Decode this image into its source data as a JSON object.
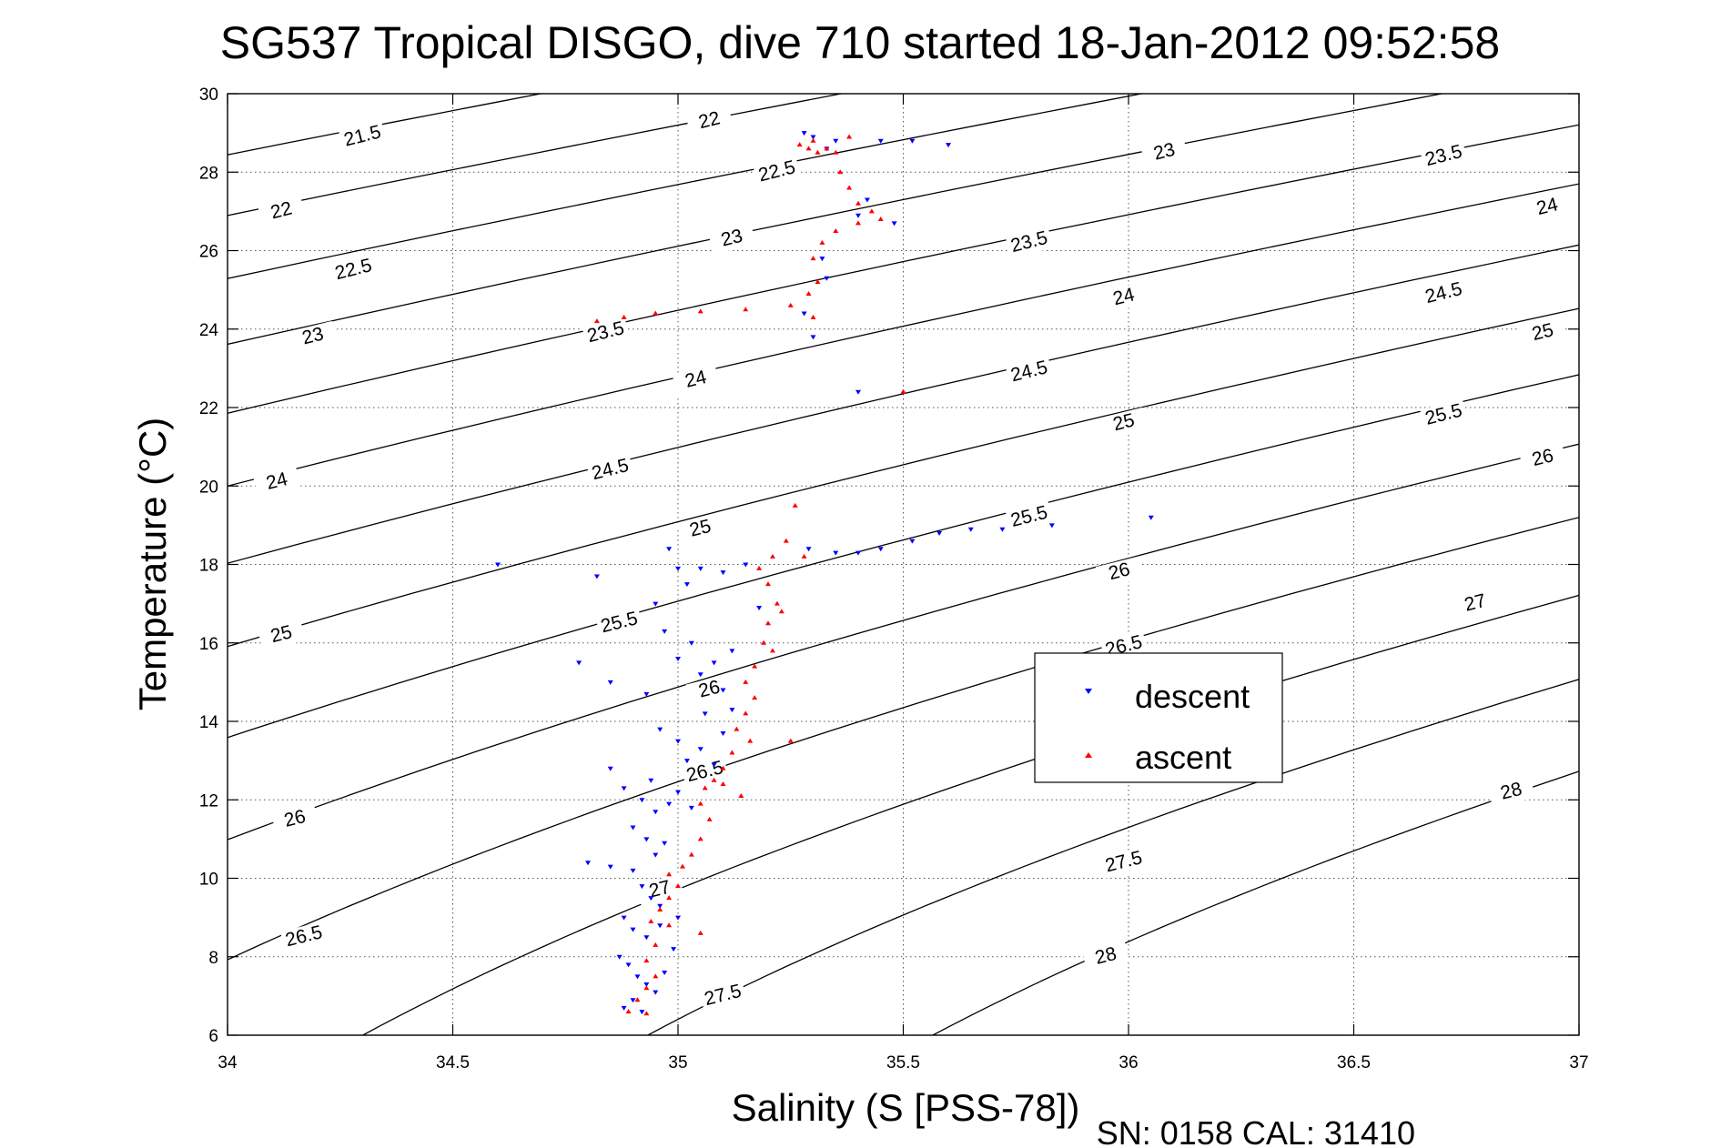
{
  "chart_data": {
    "type": "scatter",
    "title": "SG537 Tropical DISGO, dive 710 started 18-Jan-2012 09:52:58",
    "xlabel": "Salinity (S [PSS-78])",
    "ylabel": "Temperature (°C)",
    "footer": "SN: 0158  CAL: 31410",
    "xlim": [
      34,
      37
    ],
    "ylim": [
      6,
      30
    ],
    "x_ticks": [
      34,
      34.5,
      35,
      35.5,
      36,
      36.5,
      37
    ],
    "x_tick_labels": [
      "34",
      "34.5",
      "35",
      "35.5",
      "36",
      "36.5",
      "37"
    ],
    "y_ticks": [
      6,
      8,
      10,
      12,
      14,
      16,
      18,
      20,
      22,
      24,
      26,
      28,
      30
    ],
    "y_tick_labels": [
      "6",
      "8",
      "10",
      "12",
      "14",
      "16",
      "18",
      "20",
      "22",
      "24",
      "26",
      "28",
      "30"
    ],
    "grid": true,
    "legend_position": "center-right",
    "series": [
      {
        "name": "descent",
        "color": "#0000ff",
        "marker": "triangle-down",
        "points": [
          [
            35.28,
            29.0
          ],
          [
            35.3,
            28.9
          ],
          [
            35.33,
            28.6
          ],
          [
            35.45,
            28.8
          ],
          [
            35.52,
            28.8
          ],
          [
            35.6,
            28.7
          ],
          [
            35.35,
            28.8
          ],
          [
            35.42,
            27.3
          ],
          [
            35.4,
            26.9
          ],
          [
            35.48,
            26.7
          ],
          [
            35.32,
            25.8
          ],
          [
            35.33,
            25.3
          ],
          [
            35.28,
            24.4
          ],
          [
            35.3,
            23.8
          ],
          [
            35.4,
            22.4
          ],
          [
            35.29,
            18.4
          ],
          [
            35.35,
            18.3
          ],
          [
            35.4,
            18.3
          ],
          [
            35.45,
            18.4
          ],
          [
            35.52,
            18.6
          ],
          [
            35.58,
            18.8
          ],
          [
            35.65,
            18.9
          ],
          [
            35.72,
            18.9
          ],
          [
            35.83,
            19.0
          ],
          [
            36.05,
            19.2
          ],
          [
            34.6,
            18.0
          ],
          [
            34.82,
            17.7
          ],
          [
            34.78,
            15.5
          ],
          [
            34.85,
            15.0
          ],
          [
            34.98,
            18.4
          ],
          [
            35.0,
            17.9
          ],
          [
            35.02,
            17.5
          ],
          [
            35.05,
            17.9
          ],
          [
            35.1,
            17.8
          ],
          [
            35.15,
            18.0
          ],
          [
            34.95,
            17.0
          ],
          [
            34.97,
            16.3
          ],
          [
            35.0,
            15.6
          ],
          [
            35.03,
            16.0
          ],
          [
            35.05,
            15.2
          ],
          [
            35.08,
            15.5
          ],
          [
            35.1,
            14.8
          ],
          [
            35.12,
            14.3
          ],
          [
            34.93,
            14.7
          ],
          [
            34.96,
            13.8
          ],
          [
            35.0,
            13.5
          ],
          [
            35.02,
            13.0
          ],
          [
            35.05,
            13.3
          ],
          [
            35.08,
            12.9
          ],
          [
            35.1,
            13.7
          ],
          [
            34.85,
            12.8
          ],
          [
            34.88,
            12.3
          ],
          [
            34.92,
            12.0
          ],
          [
            34.95,
            11.7
          ],
          [
            34.98,
            11.9
          ],
          [
            35.0,
            12.2
          ],
          [
            35.03,
            11.8
          ],
          [
            34.9,
            11.3
          ],
          [
            34.93,
            11.0
          ],
          [
            34.95,
            10.6
          ],
          [
            34.97,
            10.9
          ],
          [
            34.8,
            10.4
          ],
          [
            34.85,
            10.3
          ],
          [
            34.9,
            10.2
          ],
          [
            34.92,
            9.8
          ],
          [
            34.94,
            9.5
          ],
          [
            34.96,
            9.3
          ],
          [
            34.88,
            9.0
          ],
          [
            34.9,
            8.7
          ],
          [
            34.93,
            8.5
          ],
          [
            34.87,
            8.0
          ],
          [
            34.89,
            7.8
          ],
          [
            34.91,
            7.5
          ],
          [
            34.93,
            7.3
          ],
          [
            34.95,
            7.1
          ],
          [
            34.9,
            6.9
          ],
          [
            34.88,
            6.7
          ],
          [
            34.92,
            6.6
          ],
          [
            34.97,
            7.6
          ],
          [
            34.99,
            8.2
          ],
          [
            35.0,
            9.0
          ],
          [
            34.96,
            8.8
          ],
          [
            34.94,
            12.5
          ],
          [
            35.06,
            14.2
          ],
          [
            35.12,
            15.8
          ],
          [
            35.18,
            16.9
          ]
        ]
      },
      {
        "name": "ascent",
        "color": "#ff0000",
        "marker": "triangle-up",
        "points": [
          [
            35.27,
            28.7
          ],
          [
            35.29,
            28.6
          ],
          [
            35.31,
            28.5
          ],
          [
            35.33,
            28.6
          ],
          [
            35.3,
            28.8
          ],
          [
            35.35,
            28.5
          ],
          [
            35.38,
            28.9
          ],
          [
            35.36,
            28.0
          ],
          [
            35.38,
            27.6
          ],
          [
            35.4,
            27.2
          ],
          [
            35.43,
            27.0
          ],
          [
            35.45,
            26.8
          ],
          [
            35.4,
            26.7
          ],
          [
            35.35,
            26.5
          ],
          [
            35.32,
            26.2
          ],
          [
            35.3,
            25.8
          ],
          [
            35.31,
            25.2
          ],
          [
            35.29,
            24.9
          ],
          [
            35.25,
            24.6
          ],
          [
            35.15,
            24.5
          ],
          [
            35.05,
            24.45
          ],
          [
            34.95,
            24.4
          ],
          [
            34.88,
            24.3
          ],
          [
            34.82,
            24.2
          ],
          [
            35.3,
            24.3
          ],
          [
            35.5,
            22.4
          ],
          [
            35.26,
            19.5
          ],
          [
            35.24,
            18.6
          ],
          [
            35.21,
            18.2
          ],
          [
            35.18,
            17.9
          ],
          [
            35.2,
            17.5
          ],
          [
            35.22,
            17.0
          ],
          [
            35.2,
            16.5
          ],
          [
            35.19,
            16.0
          ],
          [
            35.21,
            15.8
          ],
          [
            35.17,
            15.4
          ],
          [
            35.15,
            15.0
          ],
          [
            35.17,
            14.6
          ],
          [
            35.15,
            14.2
          ],
          [
            35.13,
            13.8
          ],
          [
            35.16,
            13.5
          ],
          [
            35.12,
            13.2
          ],
          [
            35.1,
            12.8
          ],
          [
            35.08,
            12.5
          ],
          [
            35.06,
            12.3
          ],
          [
            35.05,
            11.9
          ],
          [
            35.07,
            11.5
          ],
          [
            35.05,
            11.0
          ],
          [
            35.03,
            10.6
          ],
          [
            35.01,
            10.3
          ],
          [
            34.98,
            10.1
          ],
          [
            35.0,
            9.8
          ],
          [
            34.98,
            9.5
          ],
          [
            34.96,
            9.2
          ],
          [
            34.94,
            8.9
          ],
          [
            34.98,
            8.8
          ],
          [
            35.05,
            8.6
          ],
          [
            34.95,
            8.3
          ],
          [
            34.93,
            7.9
          ],
          [
            34.95,
            7.5
          ],
          [
            34.93,
            7.2
          ],
          [
            34.91,
            6.9
          ],
          [
            34.89,
            6.6
          ],
          [
            34.93,
            6.55
          ],
          [
            35.1,
            12.4
          ],
          [
            35.14,
            12.1
          ],
          [
            35.25,
            13.5
          ],
          [
            35.23,
            16.8
          ],
          [
            35.28,
            18.2
          ]
        ]
      }
    ],
    "contours": [
      {
        "value": "21.5",
        "labels": [
          [
            34.3,
            28.9
          ]
        ]
      },
      {
        "value": "22",
        "labels": [
          [
            34.12,
            27.0
          ],
          [
            35.07,
            29.3
          ]
        ]
      },
      {
        "value": "22.5",
        "labels": [
          [
            34.28,
            25.5
          ],
          [
            35.22,
            28.0
          ]
        ]
      },
      {
        "value": "23",
        "labels": [
          [
            34.19,
            23.8
          ],
          [
            35.12,
            26.3
          ],
          [
            36.08,
            28.5
          ]
        ]
      },
      {
        "value": "23.5",
        "labels": [
          [
            34.84,
            23.9
          ],
          [
            35.78,
            26.2
          ],
          [
            36.7,
            28.4
          ]
        ]
      },
      {
        "value": "24",
        "labels": [
          [
            34.11,
            20.1
          ],
          [
            35.04,
            22.7
          ],
          [
            35.99,
            24.8
          ],
          [
            36.93,
            27.1
          ]
        ]
      },
      {
        "value": "24.5",
        "labels": [
          [
            34.85,
            20.4
          ],
          [
            35.78,
            22.9
          ],
          [
            36.7,
            24.9
          ]
        ]
      },
      {
        "value": "25",
        "labels": [
          [
            34.12,
            16.2
          ],
          [
            35.05,
            18.9
          ],
          [
            35.99,
            21.6
          ],
          [
            36.92,
            23.9
          ]
        ]
      },
      {
        "value": "25.5",
        "labels": [
          [
            34.87,
            16.5
          ],
          [
            35.78,
            19.2
          ],
          [
            36.7,
            21.8
          ]
        ]
      },
      {
        "value": "26",
        "labels": [
          [
            34.15,
            11.5
          ],
          [
            35.07,
            14.8
          ],
          [
            35.98,
            17.8
          ],
          [
            36.92,
            20.7
          ]
        ]
      },
      {
        "value": "26.5",
        "labels": [
          [
            34.17,
            8.5
          ],
          [
            35.06,
            12.7
          ],
          [
            35.99,
            15.9
          ]
        ]
      },
      {
        "value": "27",
        "labels": [
          [
            34.96,
            9.7
          ],
          [
            36.77,
            17.0
          ]
        ]
      },
      {
        "value": "27.5",
        "labels": [
          [
            35.1,
            7.0
          ],
          [
            35.99,
            10.4
          ]
        ]
      },
      {
        "value": "28",
        "labels": [
          [
            35.95,
            8.0
          ],
          [
            36.85,
            12.2
          ]
        ]
      }
    ]
  }
}
